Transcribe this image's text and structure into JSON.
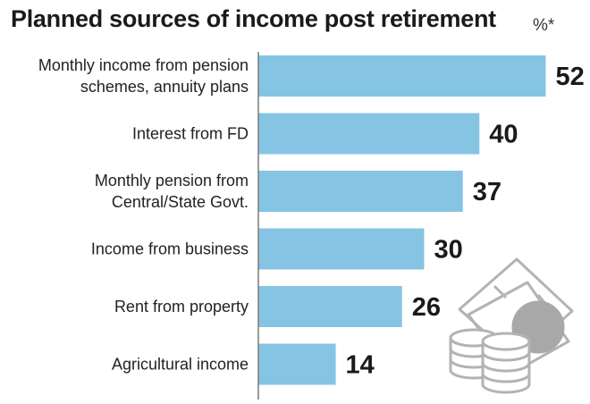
{
  "chart_data": {
    "type": "bar",
    "orientation": "horizontal",
    "title": "Planned sources of income post retirement",
    "unit_label": "%*",
    "categories": [
      [
        "Monthly income from pension",
        "schemes, annuity plans"
      ],
      [
        "Interest from FD"
      ],
      [
        "Monthly pension from",
        "Central/State Govt."
      ],
      [
        "Income from business"
      ],
      [
        "Rent from property"
      ],
      [
        "Agricultural income"
      ]
    ],
    "values": [
      52,
      40,
      37,
      30,
      26,
      14
    ],
    "xlim": [
      0,
      55
    ],
    "grid": false,
    "bar_color": "#85c4e3",
    "axis_color": "#7a7a7a"
  },
  "illustration": {
    "icon": "money-coins-icon"
  }
}
